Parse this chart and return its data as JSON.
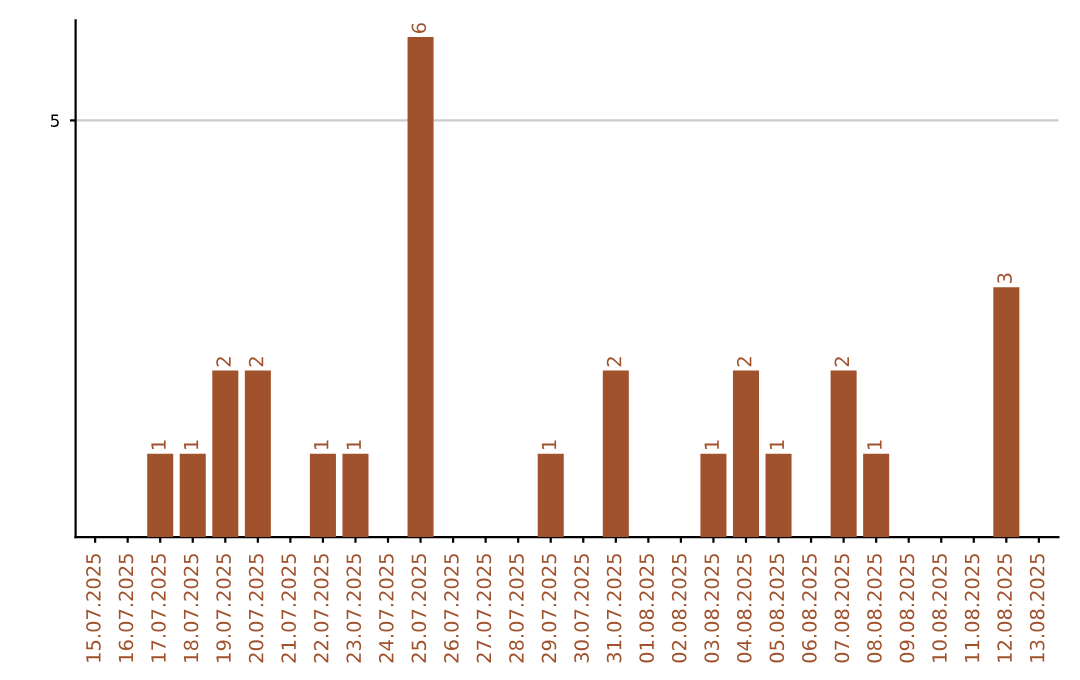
{
  "chart_data": {
    "type": "bar",
    "categories": [
      "15.07.2025",
      "16.07.2025",
      "17.07.2025",
      "18.07.2025",
      "19.07.2025",
      "20.07.2025",
      "21.07.2025",
      "22.07.2025",
      "23.07.2025",
      "24.07.2025",
      "25.07.2025",
      "26.07.2025",
      "27.07.2025",
      "28.07.2025",
      "29.07.2025",
      "30.07.2025",
      "31.07.2025",
      "01.08.2025",
      "02.08.2025",
      "03.08.2025",
      "04.08.2025",
      "05.08.2025",
      "06.08.2025",
      "07.08.2025",
      "08.08.2025",
      "09.08.2025",
      "10.08.2025",
      "11.08.2025",
      "12.08.2025",
      "13.08.2025"
    ],
    "values": [
      0,
      0,
      1,
      1,
      2,
      2,
      0,
      1,
      1,
      0,
      6,
      0,
      0,
      0,
      1,
      0,
      2,
      0,
      0,
      1,
      2,
      1,
      0,
      2,
      1,
      0,
      0,
      0,
      3,
      0
    ],
    "value_labels": [
      null,
      null,
      "1",
      "1",
      "2",
      "2",
      null,
      "1",
      "1",
      null,
      "6",
      null,
      null,
      null,
      "1",
      null,
      "2",
      null,
      null,
      "1",
      "2",
      "1",
      null,
      "2",
      "1",
      null,
      null,
      null,
      "3",
      null
    ],
    "color": "#a0522d",
    "ylim": [
      0,
      6.2
    ],
    "yticks": [
      5
    ],
    "grid": "y"
  }
}
